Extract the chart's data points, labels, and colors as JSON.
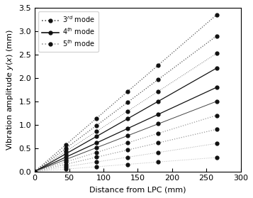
{
  "title": "",
  "xlabel": "Distance from LPC (mm)",
  "ylabel": "Vibration amplitude $y(x)$ (mm)",
  "xlim": [
    0,
    300
  ],
  "ylim": [
    0,
    3.5
  ],
  "xticks": [
    0,
    50,
    100,
    150,
    200,
    250,
    300
  ],
  "yticks": [
    0.0,
    0.5,
    1.0,
    1.5,
    2.0,
    2.5,
    3.0,
    3.5
  ],
  "x_points": [
    0,
    45,
    90,
    135,
    180,
    265
  ],
  "lines": [
    {
      "slope": 0.01264,
      "mode": "3rd",
      "linestyle": "dotted",
      "color": "#555555",
      "lw": 0.9
    },
    {
      "slope": 0.01094,
      "mode": "3rd",
      "linestyle": "dotted",
      "color": "#555555",
      "lw": 0.9
    },
    {
      "slope": 0.00953,
      "mode": "3rd",
      "linestyle": "dotted",
      "color": "#777777",
      "lw": 0.7
    },
    {
      "slope": 0.00834,
      "mode": "4th",
      "linestyle": "solid",
      "color": "#111111",
      "lw": 0.9
    },
    {
      "slope": 0.00679,
      "mode": "4th",
      "linestyle": "solid",
      "color": "#111111",
      "lw": 0.9
    },
    {
      "slope": 0.00566,
      "mode": "4th",
      "linestyle": "solid",
      "color": "#444444",
      "lw": 0.7
    },
    {
      "slope": 0.00453,
      "mode": "5th",
      "linestyle": "dotted",
      "color": "#999999",
      "lw": 0.9
    },
    {
      "slope": 0.0034,
      "mode": "5th",
      "linestyle": "dotted",
      "color": "#999999",
      "lw": 0.9
    },
    {
      "slope": 0.00226,
      "mode": "5th",
      "linestyle": "dotted",
      "color": "#aaaaaa",
      "lw": 0.7
    },
    {
      "slope": 0.00113,
      "mode": "5th",
      "linestyle": "dotted",
      "color": "#bbbbbb",
      "lw": 0.7
    }
  ],
  "legend_entries": [
    {
      "label": "$3^{rd}$ mode",
      "linestyle": "dotted",
      "color": "#555555"
    },
    {
      "label": "$4^{th}$ mode",
      "linestyle": "solid",
      "color": "#111111"
    },
    {
      "label": "$5^{th}$ mode",
      "linestyle": "dotted",
      "color": "#999999"
    }
  ],
  "marker": "o",
  "markersize": 3.5,
  "markercolor": "#111111",
  "figsize": [
    3.57,
    2.79
  ],
  "dpi": 100
}
